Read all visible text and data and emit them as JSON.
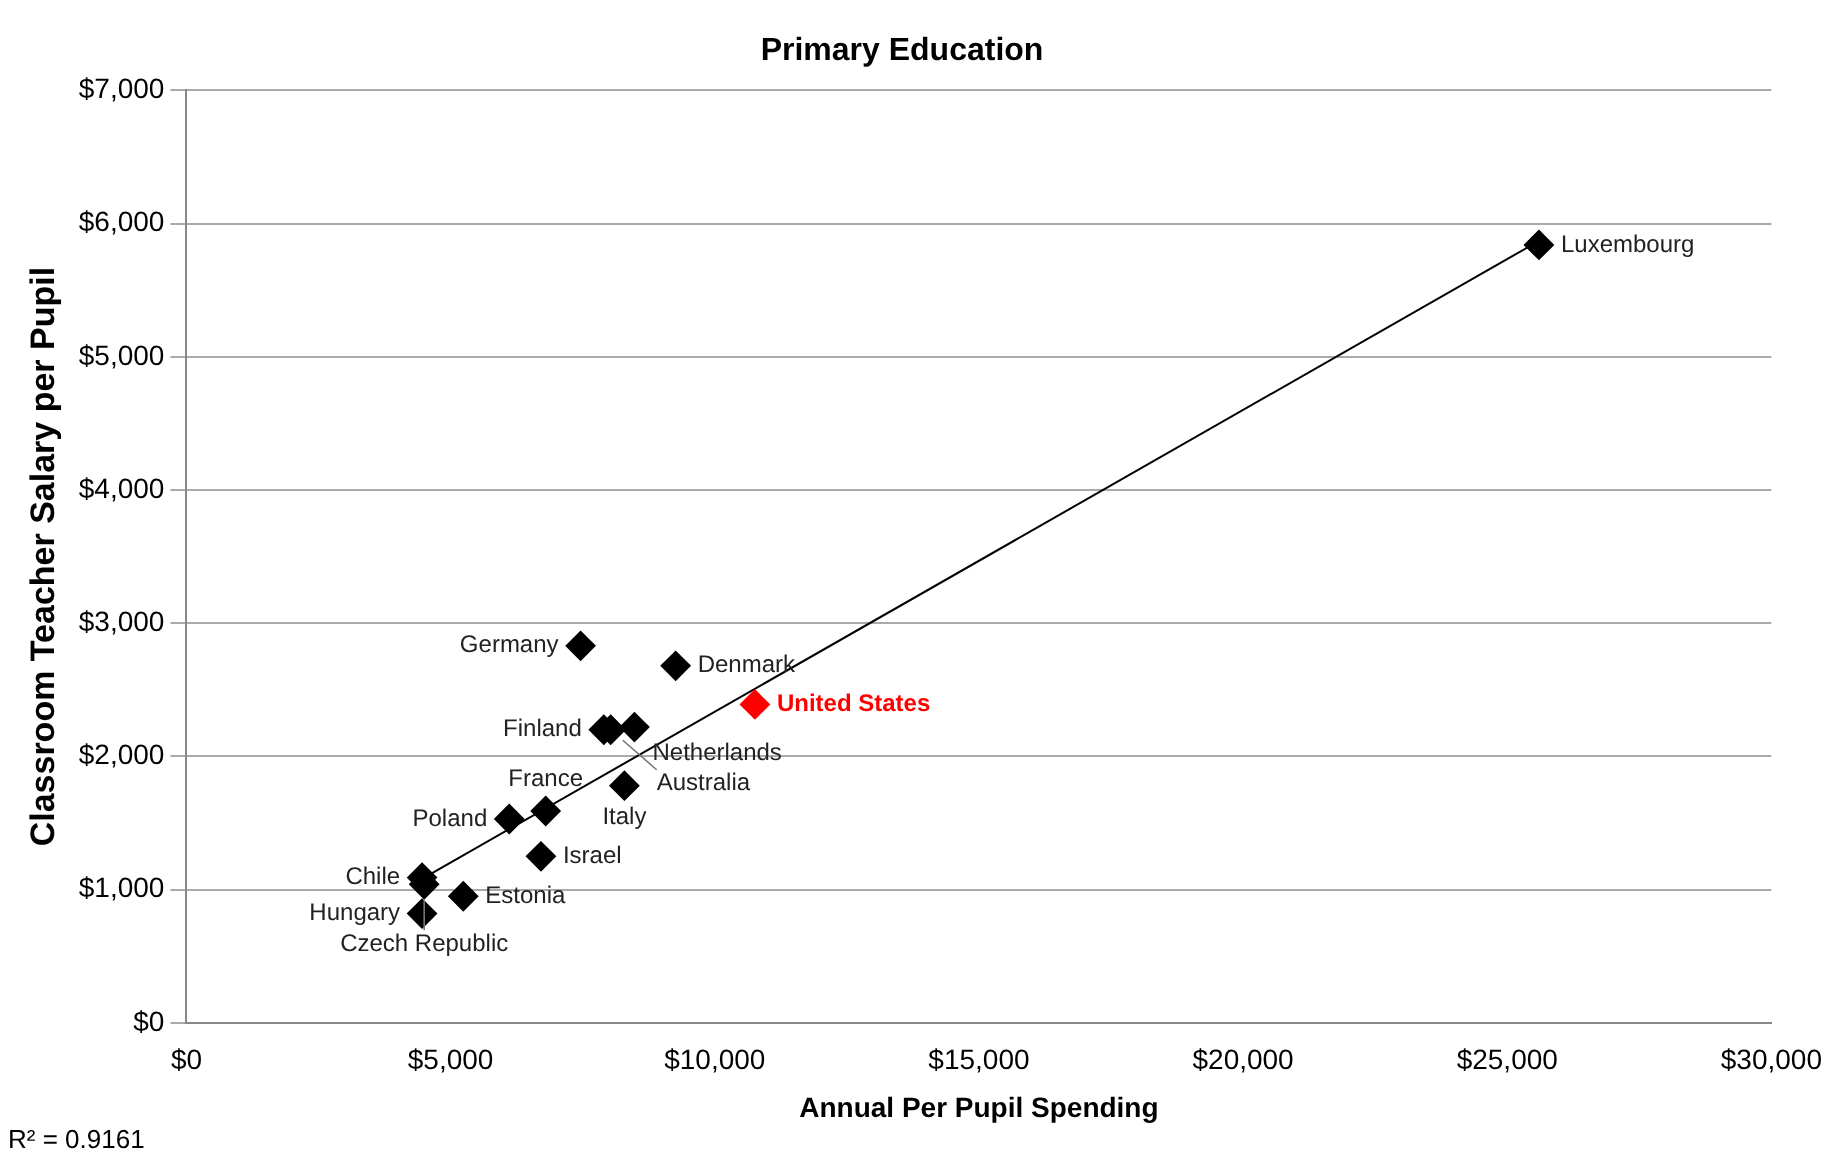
{
  "chart_data": {
    "type": "scatter",
    "title": "Primary Education",
    "xlabel": "Annual Per Pupil Spending",
    "ylabel": "Classroom Teacher Salary per Pupil",
    "xlim": [
      0,
      30000
    ],
    "xticks": [
      {
        "value": 0,
        "label": "$0"
      },
      {
        "value": 5000,
        "label": "$5,000"
      },
      {
        "value": 10000,
        "label": "$10,000"
      },
      {
        "value": 15000,
        "label": "$15,000"
      },
      {
        "value": 20000,
        "label": "$20,000"
      },
      {
        "value": 25000,
        "label": "$25,000"
      },
      {
        "value": 30000,
        "label": "$30,000"
      }
    ],
    "ylim": [
      0,
      7000
    ],
    "yticks": [
      {
        "value": 0,
        "label": "$0"
      },
      {
        "value": 1000,
        "label": "$1,000"
      },
      {
        "value": 2000,
        "label": "$2,000"
      },
      {
        "value": 3000,
        "label": "$3,000"
      },
      {
        "value": 4000,
        "label": "$4,000"
      },
      {
        "value": 5000,
        "label": "$5,000"
      },
      {
        "value": 6000,
        "label": "$6,000"
      },
      {
        "value": 7000,
        "label": "$7,000"
      }
    ],
    "grid": "y",
    "legend": false,
    "marker": "diamond",
    "annotations": [
      "R² = 0.9161",
      {
        "text": "Luxembourg",
        "x": 25600,
        "y": 5840
      },
      {
        "text": "Germany",
        "x": 7460,
        "y": 2830
      },
      {
        "text": "Denmark",
        "x": 9260,
        "y": 2680
      },
      {
        "text": "United States",
        "x": 10760,
        "y": 2390
      },
      {
        "text": "Finland",
        "x": 7900,
        "y": 2200
      },
      {
        "text": "Australia",
        "x": 8030,
        "y": 2200
      },
      {
        "text": "Netherlands",
        "x": 8480,
        "y": 2220
      },
      {
        "text": "Italy",
        "x": 8290,
        "y": 1780
      },
      {
        "text": "Poland",
        "x": 6110,
        "y": 1530
      },
      {
        "text": "France",
        "x": 6800,
        "y": 1590
      },
      {
        "text": "Israel",
        "x": 6710,
        "y": 1250
      },
      {
        "text": "Chile",
        "x": 4460,
        "y": 1090
      },
      {
        "text": "Czech Republic",
        "x": 4500,
        "y": 1040
      },
      {
        "text": "Estonia",
        "x": 5240,
        "y": 950
      },
      {
        "text": "Hungary",
        "x": 4460,
        "y": 820
      }
    ],
    "series": [
      {
        "color": "#000000",
        "x": [
          25600,
          7460,
          9260,
          7900,
          8030,
          8480,
          8290,
          6110,
          6800,
          6710,
          4460,
          4500,
          5240,
          4460
        ],
        "values": [
          5840,
          2830,
          2680,
          2200,
          2200,
          2220,
          1780,
          1530,
          1590,
          1250,
          1090,
          1040,
          950,
          820
        ]
      },
      {
        "color": "#ff0000",
        "x": [
          10760
        ],
        "values": [
          2390
        ]
      },
      {
        "type": "line",
        "color": "#000000",
        "x": [
          4460,
          25600
        ],
        "values": [
          1080,
          5870
        ],
        "marker": "none"
      }
    ]
  }
}
